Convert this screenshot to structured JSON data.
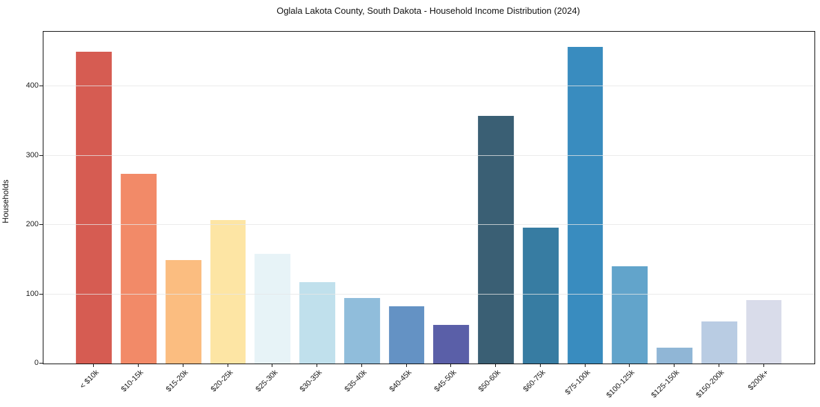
{
  "title": "Oglala Lakota County, South Dakota - Household Income Distribution (2024)",
  "axes": {
    "y_label": "Households"
  },
  "chart_data": {
    "type": "bar",
    "title": "Oglala Lakota County, South Dakota - Household Income Distribution (2024)",
    "xlabel": "",
    "ylabel": "Households",
    "ylim": [
      0,
      479
    ],
    "yticks": [
      0,
      100,
      200,
      300,
      400
    ],
    "grid": "horizontal",
    "legend": "none",
    "categories": [
      "< $10k",
      "$10-15k",
      "$15-20k",
      "$20-25k",
      "$25-30k",
      "$30-35k",
      "$35-40k",
      "$40-45k",
      "$45-50k",
      "$50-60k",
      "$60-75k",
      "$75-100k",
      "$100-125k",
      "$125-150k",
      "$150-200k",
      "$200k+"
    ],
    "values": [
      450,
      274,
      149,
      207,
      158,
      118,
      95,
      83,
      56,
      358,
      196,
      457,
      140,
      23,
      61,
      92
    ],
    "bar_colors": [
      "#d65c52",
      "#f28a68",
      "#fbbd80",
      "#fde5a4",
      "#e7f3f7",
      "#c0e0ec",
      "#90bddb",
      "#6492c4",
      "#5a5fa8",
      "#3a5f74",
      "#377ca2",
      "#398cbf",
      "#62a4cb",
      "#90b6d6",
      "#b9cce3",
      "#d9dcea"
    ],
    "colors": {
      "grid": "#e6e6e6",
      "axis": "#111111",
      "background": "#ffffff",
      "text": "#1a1a1a"
    }
  }
}
